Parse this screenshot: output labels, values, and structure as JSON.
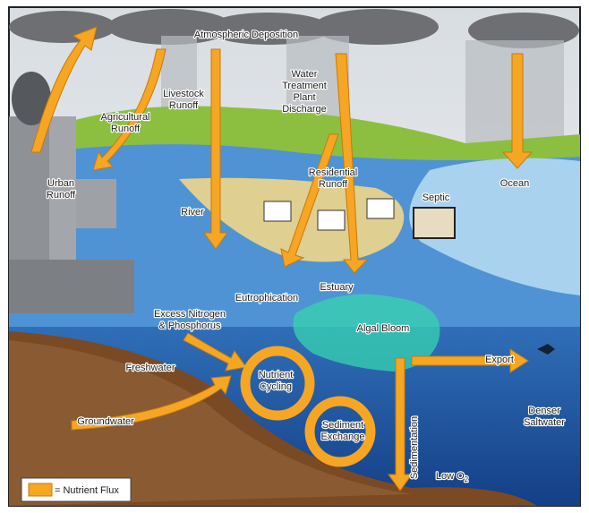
{
  "labels": [
    {
      "lines": [
        "Atmospheric Deposition"
      ]
    },
    {
      "lines": [
        "Livestock",
        "Runoff"
      ]
    },
    {
      "lines": [
        "Agricultural",
        "Runoff"
      ]
    },
    {
      "lines": [
        "Water",
        "Treatment",
        "Plant",
        "Discharge"
      ]
    },
    {
      "lines": [
        "Urban",
        "Runoff"
      ]
    },
    {
      "lines": [
        "Residential",
        "Runoff"
      ]
    },
    {
      "lines": [
        "Septic"
      ]
    },
    {
      "lines": [
        "Ocean"
      ]
    },
    {
      "lines": [
        "River"
      ]
    },
    {
      "lines": [
        "Eutrophication"
      ]
    },
    {
      "lines": [
        "Estuary"
      ]
    },
    {
      "lines": [
        "Excess Nitrogen",
        "& Phosphorus"
      ]
    },
    {
      "lines": [
        "Algal Bloom"
      ]
    },
    {
      "lines": [
        "Freshwater"
      ]
    },
    {
      "lines": [
        "Nutrient",
        "Cycling"
      ]
    },
    {
      "lines": [
        "Export"
      ]
    },
    {
      "lines": [
        "Sediment",
        "Exchange"
      ]
    },
    {
      "lines": [
        "Sedimentation"
      ]
    },
    {
      "lines": [
        "Denser",
        "Saltwater"
      ]
    },
    {
      "lines": [
        "Groundwater"
      ]
    },
    {
      "lines": [
        "Low O"
      ],
      "subscript": "2"
    }
  ],
  "legend": {
    "label": "= Nutrient Flux"
  }
}
